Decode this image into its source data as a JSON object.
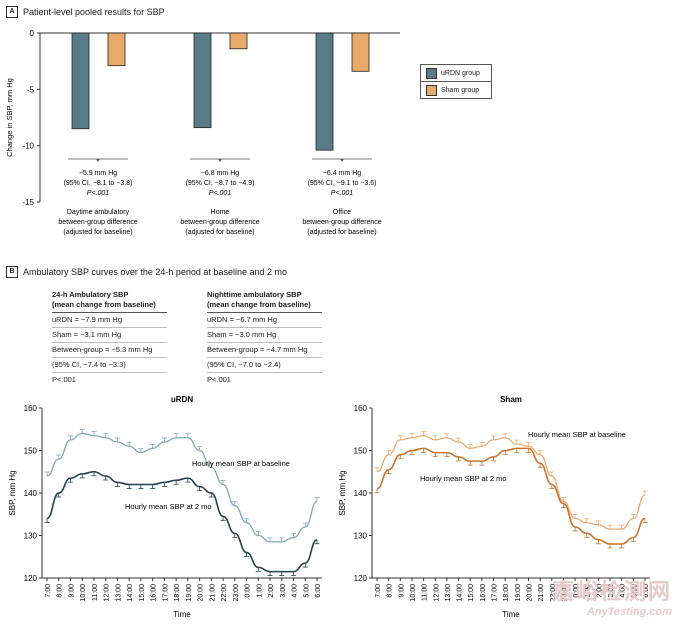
{
  "panel_a": {
    "tag": "A",
    "title": "Patient-level pooled results for SBP"
  },
  "panel_b": {
    "tag": "B",
    "title": "Ambulatory SBP curves over the 24-h period at baseline and 2 mo"
  },
  "legend": [
    {
      "label": "uRDN group",
      "color": "#587d88"
    },
    {
      "label": "Sham group",
      "color": "#e8a96b"
    }
  ],
  "chart_data": [
    {
      "type": "bar",
      "ylabel": "Change in SBP, mm Hg",
      "ylim": [
        -15,
        0
      ],
      "yticks": [
        0,
        -5,
        -10,
        -15
      ],
      "categories": [
        [
          "Daytime ambulatory",
          "between-group difference",
          "(adjusted for baseline)"
        ],
        [
          "Home",
          "between-group difference",
          "(adjusted for baseline)"
        ],
        [
          "Office",
          "between-group difference",
          "(adjusted for baseline)"
        ]
      ],
      "series": [
        {
          "name": "uRDN group",
          "values": [
            -8.5,
            -8.4,
            -10.4
          ]
        },
        {
          "name": "Sham group",
          "values": [
            -2.9,
            -1.4,
            -3.4
          ]
        }
      ],
      "annotations": [
        [
          "−5.9 mm Hg",
          "(95% CI, −8.1 to −3.8)",
          "P<.001"
        ],
        [
          "−6.8 mm Hg",
          "(95% CI, −8.7 to −4.9)",
          "P<.001"
        ],
        [
          "−6.4 mm Hg",
          "(95% CI, −9.1 to −3.6)",
          "P<.001"
        ]
      ]
    },
    {
      "type": "line",
      "title": "uRDN",
      "xlabel": "Time",
      "ylabel": "SBP, mm Hg",
      "ylim": [
        120,
        160
      ],
      "yticks": [
        120,
        130,
        140,
        150,
        160
      ],
      "x": [
        "7:00",
        "8:00",
        "9:00",
        "10:00",
        "11:00",
        "12:00",
        "13:00",
        "14:00",
        "15:00",
        "16:00",
        "17:00",
        "18:00",
        "19:00",
        "20:00",
        "21:00",
        "22:00",
        "23:00",
        "0:00",
        "1:00",
        "2:00",
        "3:00",
        "4:00",
        "5:00",
        "6:00"
      ],
      "series": [
        {
          "name": "Hourly mean SBP at baseline",
          "values": [
            144,
            148,
            152.5,
            154,
            153.5,
            153,
            152,
            151,
            149.5,
            150.5,
            152,
            153,
            153,
            150,
            146,
            142,
            137,
            133,
            130,
            128.5,
            128.5,
            129.5,
            132,
            138
          ]
        },
        {
          "name": "Hourly mean SBP at 2 mo",
          "values": [
            134,
            140,
            143.5,
            144.5,
            145,
            144,
            142.5,
            142,
            142,
            142,
            142.5,
            143,
            143.5,
            141.5,
            140,
            134.5,
            130.5,
            126,
            122.5,
            121.5,
            121.5,
            121.5,
            123.5,
            129
          ]
        }
      ]
    },
    {
      "type": "line",
      "title": "Sham",
      "xlabel": "Time",
      "ylabel": "SBP, mm Hg",
      "ylim": [
        120,
        160
      ],
      "yticks": [
        120,
        130,
        140,
        150,
        160
      ],
      "x": [
        "7:00",
        "8:00",
        "9:00",
        "10:00",
        "11:00",
        "12:00",
        "13:00",
        "14:00",
        "15:00",
        "16:00",
        "17:00",
        "18:00",
        "19:00",
        "20:00",
        "21:00",
        "22:00",
        "23:00",
        "0:00",
        "1:00",
        "2:00",
        "3:00",
        "4:00",
        "5:00",
        "6:00"
      ],
      "series": [
        {
          "name": "Hourly mean SBP at baseline",
          "values": [
            145,
            149,
            152.5,
            153,
            153.5,
            152.5,
            153,
            152,
            150.5,
            151,
            152.5,
            153,
            151.5,
            151,
            149,
            144,
            138,
            134,
            133,
            132.5,
            131.5,
            131.5,
            134,
            139.5
          ]
        },
        {
          "name": "Hourly mean SBP at 2 mo",
          "values": [
            141,
            145.5,
            149,
            150,
            150.5,
            149.5,
            149.5,
            148.5,
            147.5,
            147.5,
            148.5,
            150,
            150.5,
            150.5,
            147,
            142,
            137.5,
            132,
            130.5,
            129,
            128,
            128,
            129.5,
            134
          ]
        }
      ]
    }
  ],
  "stats": [
    {
      "title": [
        "24-h Ambulatory SBP",
        "(mean change from baseline)"
      ],
      "rows": [
        "uRDN = −7.9 mm Hg",
        "Sham = −3.1 mm Hg",
        "Between-group = −5.3 mm Hg",
        "(95% CI, −7.4 to −3.3)",
        "P<.001"
      ]
    },
    {
      "title": [
        "Nighttime ambulatory SBP",
        "(mean change from baseline)"
      ],
      "rows": [
        "uRDN = −6.7 mm Hg",
        "Sham = −3.0 mm Hg",
        "Between-group = −4.7 mm Hg",
        "(95% CI, −7.0 to −2.4)",
        "P<.001"
      ]
    }
  ],
  "line_colors": {
    "urdn_baseline": "#7ea9b6",
    "urdn_2mo": "#1f4350",
    "sham_baseline": "#e8ab6e",
    "sham_2mo": "#c7752e"
  },
  "watermark": {
    "cn": "嘉峪检测网",
    "en": "AnyTesting.com"
  }
}
